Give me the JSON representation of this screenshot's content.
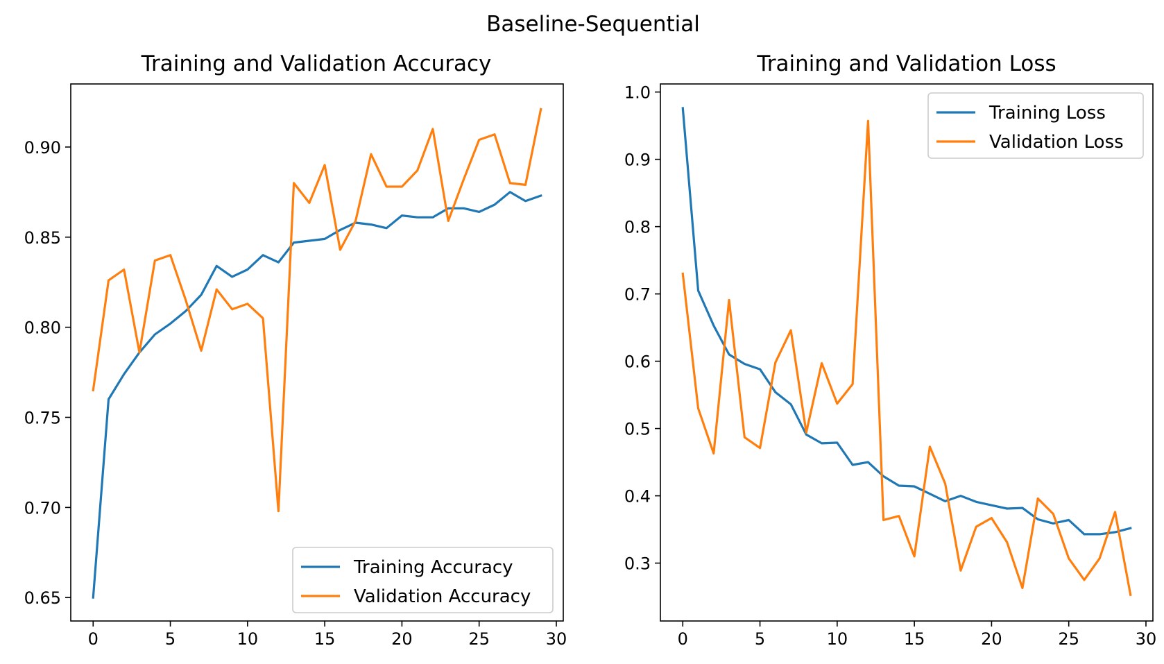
{
  "figure": {
    "title": "Baseline-Sequential"
  },
  "colors": {
    "training": "#1f77b4",
    "validation": "#ff7f0e"
  },
  "chart_data": [
    {
      "type": "line",
      "title": "Training and Validation Accuracy",
      "xlabel": "",
      "ylabel": "",
      "xlim": [
        -1.45,
        30.45
      ],
      "ylim": [
        0.637,
        0.935
      ],
      "xticks": [
        0,
        5,
        10,
        15,
        20,
        25,
        30
      ],
      "yticks": [
        0.65,
        0.7,
        0.75,
        0.8,
        0.85,
        0.9
      ],
      "ytick_labels": [
        "0.65",
        "0.70",
        "0.75",
        "0.80",
        "0.85",
        "0.90"
      ],
      "legend": "lower-right",
      "grid": false,
      "x": [
        0,
        1,
        2,
        3,
        4,
        5,
        6,
        7,
        8,
        9,
        10,
        11,
        12,
        13,
        14,
        15,
        16,
        17,
        18,
        19,
        20,
        21,
        22,
        23,
        24,
        25,
        26,
        27,
        28,
        29
      ],
      "series": [
        {
          "name": "Training Accuracy",
          "color": "#1f77b4",
          "values": [
            0.65,
            0.76,
            0.774,
            0.786,
            0.796,
            0.802,
            0.809,
            0.818,
            0.834,
            0.828,
            0.832,
            0.84,
            0.836,
            0.847,
            0.848,
            0.849,
            0.854,
            0.858,
            0.857,
            0.855,
            0.862,
            0.861,
            0.861,
            0.866,
            0.866,
            0.864,
            0.868,
            0.875,
            0.87,
            0.873
          ]
        },
        {
          "name": "Validation Accuracy",
          "color": "#ff7f0e",
          "values": [
            0.765,
            0.826,
            0.832,
            0.786,
            0.837,
            0.84,
            0.815,
            0.787,
            0.821,
            0.81,
            0.813,
            0.805,
            0.698,
            0.88,
            0.869,
            0.89,
            0.843,
            0.859,
            0.896,
            0.878,
            0.878,
            0.887,
            0.91,
            0.859,
            0.882,
            0.904,
            0.907,
            0.88,
            0.879,
            0.921
          ]
        }
      ]
    },
    {
      "type": "line",
      "title": "Training and Validation Loss",
      "xlabel": "",
      "ylabel": "",
      "xlim": [
        -1.45,
        30.45
      ],
      "ylim": [
        0.214,
        1.012
      ],
      "xticks": [
        0,
        5,
        10,
        15,
        20,
        25,
        30
      ],
      "yticks": [
        0.3,
        0.4,
        0.5,
        0.6,
        0.7,
        0.8,
        0.9,
        1.0
      ],
      "ytick_labels": [
        "0.3",
        "0.4",
        "0.5",
        "0.6",
        "0.7",
        "0.8",
        "0.9",
        "1.0"
      ],
      "legend": "top-right",
      "grid": false,
      "x": [
        0,
        1,
        2,
        3,
        4,
        5,
        6,
        7,
        8,
        9,
        10,
        11,
        12,
        13,
        14,
        15,
        16,
        17,
        18,
        19,
        20,
        21,
        22,
        23,
        24,
        25,
        26,
        27,
        28,
        29
      ],
      "series": [
        {
          "name": "Training Loss",
          "color": "#1f77b4",
          "values": [
            0.976,
            0.705,
            0.653,
            0.61,
            0.596,
            0.588,
            0.554,
            0.536,
            0.491,
            0.478,
            0.479,
            0.446,
            0.45,
            0.429,
            0.415,
            0.414,
            0.403,
            0.392,
            0.4,
            0.391,
            0.386,
            0.381,
            0.382,
            0.365,
            0.359,
            0.364,
            0.343,
            0.343,
            0.346,
            0.352
          ]
        },
        {
          "name": "Validation Loss",
          "color": "#ff7f0e",
          "values": [
            0.73,
            0.53,
            0.463,
            0.691,
            0.487,
            0.471,
            0.598,
            0.646,
            0.494,
            0.597,
            0.537,
            0.566,
            0.957,
            0.364,
            0.37,
            0.31,
            0.473,
            0.418,
            0.289,
            0.354,
            0.367,
            0.331,
            0.263,
            0.396,
            0.373,
            0.307,
            0.275,
            0.307,
            0.376,
            0.253
          ]
        }
      ]
    }
  ]
}
